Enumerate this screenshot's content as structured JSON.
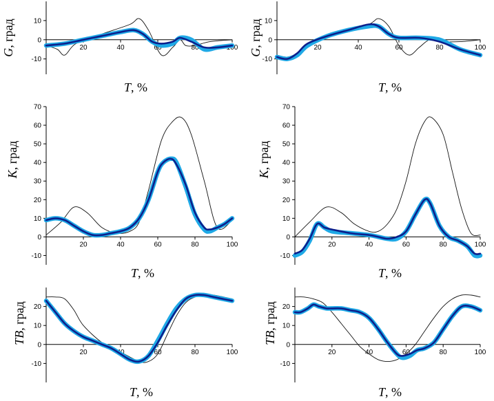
{
  "chart_data": [
    {
      "id": "G-left",
      "type": "line",
      "xlim": [
        0,
        100
      ],
      "ylim": [
        -18,
        20
      ],
      "yticks": [
        -10,
        0,
        10
      ],
      "xticks": [
        20,
        40,
        60,
        80,
        100
      ],
      "ylabel_var": "G",
      "ylabel_unit": ", град",
      "xlabel_var": "T",
      "xlabel_unit": ", %",
      "series": [
        {
          "name": "norm",
          "style": "thin",
          "x": [
            0,
            6,
            10,
            16,
            30,
            45,
            50,
            55,
            62,
            68,
            72,
            75,
            80,
            88,
            100
          ],
          "y": [
            -3,
            -5,
            -8,
            -2,
            3,
            8,
            11,
            5,
            -8,
            -4,
            0,
            -3,
            -3,
            -1,
            0
          ]
        },
        {
          "name": "band",
          "style": "light",
          "x": [
            0,
            10,
            20,
            30,
            40,
            47,
            52,
            57,
            62,
            68,
            72,
            78,
            85,
            92,
            100
          ],
          "y": [
            -3,
            -2,
            0,
            2,
            4,
            5,
            3,
            -1,
            -3,
            -2,
            1,
            0,
            -5,
            -4,
            -3
          ]
        },
        {
          "name": "mean",
          "style": "dark",
          "x": [
            0,
            10,
            20,
            30,
            40,
            47,
            52,
            57,
            62,
            68,
            72,
            78,
            85,
            92,
            100
          ],
          "y": [
            -3,
            -2,
            0,
            2,
            4,
            5,
            3,
            -1,
            -2,
            -1,
            1,
            -1,
            -4,
            -4,
            -3
          ]
        }
      ]
    },
    {
      "id": "G-right",
      "type": "line",
      "xlim": [
        0,
        100
      ],
      "ylim": [
        -18,
        20
      ],
      "yticks": [
        -10,
        0,
        10
      ],
      "xticks": [
        20,
        40,
        60,
        80,
        100
      ],
      "ylabel_var": "G",
      "ylabel_unit": ", град",
      "xlabel_var": "T",
      "xlabel_unit": ", %",
      "series": [
        {
          "name": "norm",
          "style": "thin",
          "x": [
            0,
            5,
            10,
            15,
            30,
            45,
            50,
            55,
            60,
            65,
            70,
            75,
            80,
            90,
            100
          ],
          "y": [
            -8,
            -9,
            -7,
            -2,
            3,
            8,
            11,
            7,
            -3,
            -8,
            -4,
            0,
            -1,
            -1,
            0
          ]
        },
        {
          "name": "band",
          "style": "light",
          "x": [
            0,
            5,
            10,
            15,
            25,
            35,
            45,
            50,
            55,
            60,
            70,
            80,
            90,
            100
          ],
          "y": [
            -9,
            -10,
            -8,
            -3,
            2,
            5,
            7,
            7,
            3,
            1,
            1,
            0,
            -5,
            -8
          ]
        },
        {
          "name": "mean",
          "style": "dark",
          "x": [
            0,
            5,
            10,
            15,
            25,
            35,
            45,
            50,
            55,
            60,
            70,
            80,
            90,
            100
          ],
          "y": [
            -9,
            -10,
            -7,
            -2,
            2,
            5,
            8,
            7,
            3,
            1,
            1,
            -1,
            -5,
            -8
          ]
        }
      ]
    },
    {
      "id": "K-left",
      "type": "line",
      "xlim": [
        0,
        100
      ],
      "ylim": [
        -15,
        70
      ],
      "yticks": [
        -10,
        0,
        10,
        20,
        30,
        40,
        50,
        60,
        70
      ],
      "xticks": [
        20,
        40,
        60,
        80,
        100
      ],
      "ylabel_var": "K",
      "ylabel_unit": ", град",
      "xlabel_var": "T",
      "xlabel_unit": ", %",
      "series": [
        {
          "name": "norm",
          "style": "thin",
          "x": [
            0,
            8,
            15,
            22,
            30,
            38,
            45,
            50,
            55,
            62,
            68,
            73,
            78,
            85,
            92,
            100
          ],
          "y": [
            1,
            8,
            16,
            13,
            5,
            2,
            3,
            8,
            25,
            52,
            62,
            64,
            55,
            30,
            5,
            9
          ]
        },
        {
          "name": "band",
          "style": "light",
          "x": [
            0,
            5,
            10,
            15,
            20,
            25,
            30,
            35,
            40,
            45,
            50,
            55,
            60,
            63,
            67,
            70,
            75,
            80,
            85,
            88,
            92,
            96,
            100
          ],
          "y": [
            9,
            10,
            9,
            6,
            3,
            1,
            1,
            2,
            3,
            5,
            10,
            20,
            35,
            40,
            42,
            40,
            27,
            12,
            4,
            3,
            5,
            7,
            10
          ]
        },
        {
          "name": "mean",
          "style": "dark",
          "x": [
            0,
            5,
            10,
            15,
            20,
            25,
            30,
            35,
            40,
            45,
            50,
            55,
            60,
            63,
            67,
            70,
            75,
            80,
            85,
            88,
            92,
            96,
            100
          ],
          "y": [
            9,
            10,
            9,
            6,
            3,
            1,
            1,
            2,
            3,
            5,
            10,
            20,
            35,
            40,
            42,
            39,
            28,
            13,
            5,
            4,
            5,
            7,
            10
          ]
        }
      ]
    },
    {
      "id": "K-right",
      "type": "line",
      "xlim": [
        0,
        100
      ],
      "ylim": [
        -15,
        70
      ],
      "yticks": [
        -10,
        0,
        10,
        20,
        30,
        40,
        50,
        60,
        70
      ],
      "xticks": [
        20,
        40,
        60,
        80,
        100
      ],
      "ylabel_var": "K",
      "ylabel_unit": ", град",
      "xlabel_var": "T",
      "xlabel_unit": ", %",
      "series": [
        {
          "name": "norm",
          "style": "thin",
          "x": [
            0,
            8,
            17,
            25,
            32,
            40,
            45,
            50,
            55,
            60,
            65,
            70,
            74,
            80,
            85,
            90,
            95,
            100
          ],
          "y": [
            0,
            8,
            16,
            13,
            7,
            3,
            3,
            7,
            15,
            30,
            50,
            62,
            64,
            55,
            35,
            15,
            2,
            1
          ]
        },
        {
          "name": "band",
          "style": "light",
          "x": [
            0,
            4,
            8,
            12,
            16,
            20,
            30,
            40,
            45,
            50,
            55,
            60,
            65,
            70,
            73,
            78,
            83,
            88,
            93,
            97,
            100
          ],
          "y": [
            -10,
            -8,
            -2,
            7,
            5,
            3,
            2,
            1,
            0,
            -1,
            -1,
            3,
            12,
            20,
            18,
            6,
            0,
            -2,
            -5,
            -10,
            -10
          ]
        },
        {
          "name": "mean",
          "style": "dark",
          "x": [
            0,
            4,
            8,
            12,
            16,
            20,
            30,
            40,
            45,
            50,
            55,
            60,
            65,
            70,
            73,
            78,
            83,
            88,
            93,
            97,
            100
          ],
          "y": [
            -9,
            -7,
            -1,
            7,
            5,
            4,
            2,
            1,
            0,
            -1,
            0,
            3,
            12,
            20,
            18,
            6,
            0,
            -2,
            -5,
            -9,
            -9
          ]
        }
      ]
    },
    {
      "id": "TB-left",
      "type": "line",
      "xlim": [
        0,
        100
      ],
      "ylim": [
        -20,
        30
      ],
      "yticks": [
        -10,
        0,
        10,
        20
      ],
      "xticks": [
        20,
        40,
        60,
        80,
        100
      ],
      "ylabel_var": "TB",
      "ylabel_unit": ", град",
      "xlabel_var": "T",
      "xlabel_unit": ", %",
      "series": [
        {
          "name": "norm",
          "style": "thin",
          "x": [
            0,
            5,
            10,
            15,
            20,
            30,
            40,
            50,
            55,
            60,
            65,
            70,
            75,
            80,
            85,
            90,
            100
          ],
          "y": [
            25,
            25,
            24,
            18,
            10,
            1,
            -4,
            -9,
            -9,
            -5,
            5,
            15,
            22,
            25,
            26,
            26,
            24
          ]
        },
        {
          "name": "band",
          "style": "light",
          "x": [
            0,
            5,
            10,
            15,
            20,
            25,
            30,
            35,
            40,
            45,
            50,
            55,
            60,
            65,
            70,
            75,
            80,
            85,
            90,
            95,
            100
          ],
          "y": [
            23,
            17,
            11,
            7,
            4,
            2,
            0,
            -2,
            -5,
            -8,
            -9,
            -6,
            2,
            11,
            19,
            24,
            26,
            26,
            25,
            24,
            23
          ]
        },
        {
          "name": "mean",
          "style": "dark",
          "x": [
            0,
            5,
            10,
            15,
            20,
            25,
            30,
            35,
            40,
            45,
            50,
            55,
            60,
            65,
            70,
            75,
            80,
            85,
            90,
            95,
            100
          ],
          "y": [
            23,
            17,
            11,
            7,
            4,
            2,
            0,
            -2,
            -5,
            -8,
            -9,
            -6,
            1,
            10,
            18,
            24,
            26,
            26,
            25,
            24,
            23
          ]
        }
      ]
    },
    {
      "id": "TB-right",
      "type": "line",
      "xlim": [
        0,
        100
      ],
      "ylim": [
        -20,
        30
      ],
      "yticks": [
        -10,
        0,
        10,
        20
      ],
      "xticks": [
        20,
        40,
        60,
        80,
        100
      ],
      "ylabel_var": "TB",
      "ylabel_unit": ", град",
      "xlabel_var": "T",
      "xlabel_unit": ", %",
      "series": [
        {
          "name": "norm",
          "style": "thin",
          "x": [
            0,
            5,
            10,
            15,
            20,
            25,
            30,
            35,
            40,
            45,
            50,
            55,
            60,
            65,
            70,
            75,
            80,
            85,
            90,
            95,
            100
          ],
          "y": [
            25,
            25,
            24,
            22,
            17,
            11,
            5,
            -1,
            -5,
            -8,
            -9,
            -8,
            -5,
            0,
            7,
            14,
            20,
            24,
            26,
            26,
            25
          ]
        },
        {
          "name": "band",
          "style": "light",
          "x": [
            0,
            3,
            7,
            10,
            13,
            17,
            20,
            25,
            30,
            35,
            40,
            45,
            50,
            55,
            58,
            62,
            66,
            70,
            75,
            80,
            85,
            90,
            95,
            100
          ],
          "y": [
            17,
            17,
            19,
            21,
            20,
            19,
            19,
            19,
            18,
            17,
            14,
            8,
            1,
            -5,
            -7,
            -6,
            -3,
            -2,
            1,
            8,
            15,
            20,
            20,
            18
          ]
        },
        {
          "name": "mean",
          "style": "dark",
          "x": [
            0,
            3,
            7,
            10,
            13,
            17,
            20,
            25,
            30,
            35,
            40,
            45,
            50,
            55,
            58,
            62,
            66,
            70,
            75,
            80,
            85,
            90,
            95,
            100
          ],
          "y": [
            17,
            17,
            19,
            21,
            20,
            19,
            19,
            19,
            18,
            17,
            14,
            8,
            1,
            -5,
            -6,
            -5,
            -3,
            -2,
            1,
            8,
            15,
            20,
            20,
            18
          ]
        }
      ]
    }
  ]
}
